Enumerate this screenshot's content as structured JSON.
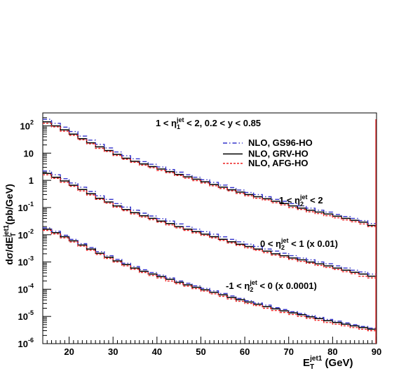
{
  "chart_data": {
    "type": "line",
    "step": true,
    "ylabel": "dσ/dE_T^{jet1}(pb/GeV)",
    "xlabel": "E_T^{jet1} (GeV)",
    "xlim": [
      14,
      90
    ],
    "ylim": [
      1e-06,
      300
    ],
    "log_y": true,
    "grid": false,
    "x_ticks": [
      "20",
      "30",
      "40",
      "50",
      "60",
      "70",
      "80",
      "90"
    ],
    "y_ticks": [
      {
        "base": "10",
        "exp": "-6"
      },
      {
        "base": "10",
        "exp": "-5"
      },
      {
        "base": "10",
        "exp": "-4"
      },
      {
        "base": "10",
        "exp": "-3"
      },
      {
        "base": "10",
        "exp": "-2"
      },
      {
        "base": "10",
        "exp": "-1"
      },
      {
        "base": "1",
        "exp": ""
      },
      {
        "base": "10",
        "exp": ""
      },
      {
        "base": "10",
        "exp": "2"
      }
    ],
    "header": {
      "t1": "1 < η",
      "sub1": "1",
      "sup1": "jet",
      "t2": " < 2,  0.2 < y < 0.85"
    },
    "legend": {
      "placement": "top-right",
      "entries": [
        {
          "label": "NLO, GS96-HO",
          "color": "#3333cc",
          "style": "dashdot"
        },
        {
          "label": "NLO, GRV-HO",
          "color": "#000000",
          "style": "solid"
        },
        {
          "label": "NLO, AFG-HO",
          "color": "#ee2222",
          "style": "dotted"
        }
      ]
    },
    "annotations": [
      {
        "t1": "1 < η",
        "sub": "2",
        "sup": "jet",
        "t2": " < 2"
      },
      {
        "t1": "0 < η",
        "sub": "2",
        "sup": "jet",
        "t2": " < 1 (x 0.01)"
      },
      {
        "t1": "-1 < η",
        "sub": "2",
        "sup": "jet",
        "t2": " < 0 (x 0.0001)"
      }
    ],
    "bin_edges": [
      14,
      16,
      18,
      20,
      22,
      24,
      26,
      28,
      30,
      32,
      34,
      36,
      38,
      40,
      42,
      44,
      46,
      48,
      50,
      52,
      54,
      56,
      58,
      60,
      62,
      64,
      66,
      68,
      70,
      72,
      74,
      76,
      78,
      80,
      82,
      84,
      86,
      88,
      90
    ],
    "series": [
      {
        "name": "NLO, GRV-HO",
        "group": "1 < η2 < 2",
        "color": "#000000",
        "style": "solid",
        "values": [
          140,
          100,
          72,
          50,
          34,
          24,
          17,
          12.5,
          9,
          6.5,
          5.0,
          4.0,
          3.2,
          2.6,
          2.1,
          1.65,
          1.35,
          1.1,
          0.88,
          0.7,
          0.56,
          0.45,
          0.37,
          0.3,
          0.25,
          0.21,
          0.17,
          0.14,
          0.115,
          0.095,
          0.08,
          0.068,
          0.058,
          0.048,
          0.04,
          0.034,
          0.029,
          0.022
        ]
      },
      {
        "name": "NLO, GS96-HO",
        "group": "1 < η2 < 2",
        "color": "#3333cc",
        "style": "dashdot",
        "values": [
          175,
          125,
          90,
          62,
          42,
          30,
          21,
          15.5,
          11,
          8,
          6.2,
          4.9,
          3.9,
          3.1,
          2.5,
          2.0,
          1.6,
          1.3,
          1.05,
          0.84,
          0.67,
          0.54,
          0.44,
          0.36,
          0.3,
          0.25,
          0.2,
          0.17,
          0.14,
          0.115,
          0.095,
          0.08,
          0.068,
          0.056,
          0.047,
          0.04,
          0.033,
          0.026
        ]
      },
      {
        "name": "NLO, AFG-HO",
        "group": "1 < η2 < 2",
        "color": "#ee2222",
        "style": "dotted",
        "values": [
          125,
          92,
          64,
          45,
          31,
          22,
          15,
          11.5,
          8.2,
          5.9,
          4.6,
          3.6,
          2.9,
          2.3,
          1.9,
          1.5,
          1.2,
          0.98,
          0.8,
          0.63,
          0.5,
          0.41,
          0.33,
          0.27,
          0.22,
          0.19,
          0.15,
          0.125,
          0.1,
          0.085,
          0.07,
          0.06,
          0.05,
          0.042,
          0.035,
          0.03,
          0.025,
          0.02
        ]
      },
      {
        "name": "NLO, GRV-HO",
        "group": "0 < η2 < 1 (x 0.01)",
        "color": "#000000",
        "style": "solid",
        "values": [
          1.8,
          1.3,
          0.95,
          0.66,
          0.46,
          0.32,
          0.22,
          0.16,
          0.115,
          0.085,
          0.065,
          0.05,
          0.04,
          0.032,
          0.026,
          0.02,
          0.016,
          0.013,
          0.0105,
          0.0085,
          0.0068,
          0.0055,
          0.0045,
          0.0037,
          0.003,
          0.0025,
          0.002,
          0.0017,
          0.0014,
          0.0012,
          0.001,
          0.00085,
          0.00072,
          0.0006,
          0.0005,
          0.00042,
          0.00036,
          0.0003
        ]
      },
      {
        "name": "NLO, GS96-HO",
        "group": "0 < η2 < 1 (x 0.01)",
        "color": "#3333cc",
        "style": "dashdot",
        "values": [
          2.2,
          1.6,
          1.15,
          0.8,
          0.56,
          0.39,
          0.27,
          0.2,
          0.14,
          0.104,
          0.08,
          0.062,
          0.049,
          0.039,
          0.032,
          0.025,
          0.02,
          0.016,
          0.013,
          0.0105,
          0.0084,
          0.0068,
          0.0055,
          0.0045,
          0.0037,
          0.003,
          0.0025,
          0.0021,
          0.0017,
          0.0014,
          0.0012,
          0.001,
          0.00086,
          0.00072,
          0.0006,
          0.0005,
          0.00043,
          0.00036
        ]
      },
      {
        "name": "NLO, AFG-HO",
        "group": "0 < η2 < 1 (x 0.01)",
        "color": "#ee2222",
        "style": "dotted",
        "values": [
          1.6,
          1.18,
          0.85,
          0.6,
          0.41,
          0.29,
          0.2,
          0.145,
          0.104,
          0.077,
          0.058,
          0.045,
          0.036,
          0.029,
          0.023,
          0.018,
          0.0145,
          0.0118,
          0.0095,
          0.0077,
          0.0062,
          0.005,
          0.0041,
          0.0033,
          0.0027,
          0.0022,
          0.0018,
          0.0015,
          0.00125,
          0.00105,
          0.0009,
          0.00075,
          0.00063,
          0.00053,
          0.00044,
          0.00037,
          0.0003,
          0.00026
        ]
      },
      {
        "name": "NLO, GRV-HO",
        "group": "-1 < η2 < 0 (x 0.0001)",
        "color": "#000000",
        "style": "solid",
        "values": [
          0.016,
          0.012,
          0.0085,
          0.006,
          0.0042,
          0.003,
          0.0021,
          0.0015,
          0.0011,
          0.0008,
          0.0006,
          0.00046,
          0.00036,
          0.00029,
          0.00023,
          0.00018,
          0.000145,
          0.000118,
          9.5e-05,
          7.7e-05,
          6.2e-05,
          5e-05,
          4.1e-05,
          3.4e-05,
          2.8e-05,
          2.3e-05,
          1.9e-05,
          1.6e-05,
          1.35e-05,
          1.15e-05,
          9.7e-06,
          8.3e-06,
          7e-06,
          6e-06,
          5.2e-06,
          4.5e-06,
          3.9e-06,
          3.4e-06
        ]
      },
      {
        "name": "NLO, GS96-HO",
        "group": "-1 < η2 < 0 (x 0.0001)",
        "color": "#3333cc",
        "style": "dashdot",
        "values": [
          0.018,
          0.0135,
          0.0096,
          0.0068,
          0.0047,
          0.0034,
          0.0024,
          0.0017,
          0.00125,
          0.0009,
          0.00068,
          0.00052,
          0.00041,
          0.00033,
          0.00026,
          0.0002,
          0.000165,
          0.000133,
          0.000107,
          8.7e-05,
          7e-05,
          5.7e-05,
          4.6e-05,
          3.8e-05,
          3.1e-05,
          2.6e-05,
          2.1e-05,
          1.8e-05,
          1.5e-05,
          1.28e-05,
          1.08e-05,
          9.2e-06,
          7.8e-06,
          6.7e-06,
          5.8e-06,
          5e-06,
          4.3e-06,
          3.7e-06
        ]
      },
      {
        "name": "NLO, AFG-HO",
        "group": "-1 < η2 < 0 (x 0.0001)",
        "color": "#ee2222",
        "style": "dotted",
        "values": [
          0.0145,
          0.0108,
          0.0077,
          0.0054,
          0.0038,
          0.0027,
          0.0019,
          0.00135,
          0.001,
          0.00072,
          0.00054,
          0.00041,
          0.00032,
          0.00026,
          0.0002,
          0.00016,
          0.00013,
          0.000105,
          8.5e-05,
          6.8e-05,
          5.5e-05,
          4.4e-05,
          3.6e-05,
          3e-05,
          2.5e-05,
          2e-05,
          1.65e-05,
          1.4e-05,
          1.18e-05,
          1e-05,
          8.5e-06,
          7.2e-06,
          6e-06,
          5.2e-06,
          4.5e-06,
          3.9e-06,
          3.4e-06,
          3e-06
        ]
      }
    ]
  }
}
